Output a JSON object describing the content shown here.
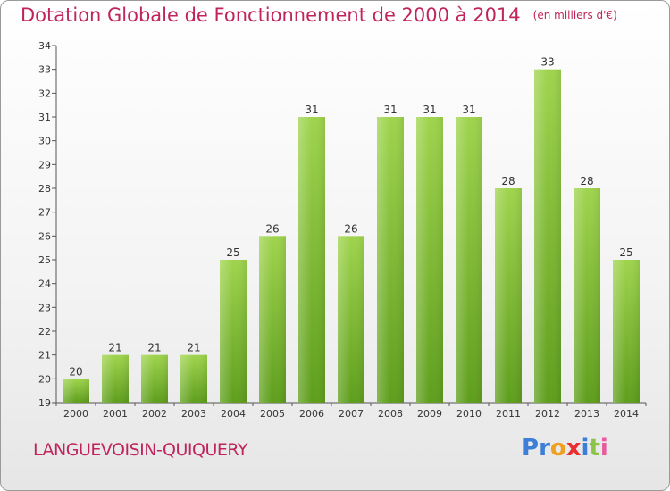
{
  "header": {
    "title": "Dotation Globale de Fonctionnement de 2000 à 2014",
    "unit": "(en milliers d'€)"
  },
  "footer": {
    "commune": "LANGUEVOISIN-QUIQUERY"
  },
  "logo": {
    "letters": [
      "P",
      "r",
      "o",
      "x",
      "i",
      "t",
      "i"
    ],
    "colors": [
      "#3d7fd6",
      "#3d7fd6",
      "#f0a020",
      "#e83030",
      "#3d7fd6",
      "#8bc34a",
      "#e85aa0"
    ]
  },
  "chart_data": {
    "type": "bar",
    "categories": [
      "2000",
      "2001",
      "2002",
      "2003",
      "2004",
      "2005",
      "2006",
      "2007",
      "2008",
      "2009",
      "2010",
      "2011",
      "2012",
      "2013",
      "2014"
    ],
    "values": [
      20,
      21,
      21,
      21,
      25,
      26,
      31,
      26,
      31,
      31,
      31,
      28,
      33,
      28,
      25
    ],
    "ylim": [
      19,
      34
    ],
    "yticks": [
      19,
      20,
      21,
      22,
      23,
      24,
      25,
      26,
      27,
      28,
      29,
      30,
      31,
      32,
      33,
      34
    ],
    "grid": false,
    "bar_color": "#8cc63f"
  }
}
